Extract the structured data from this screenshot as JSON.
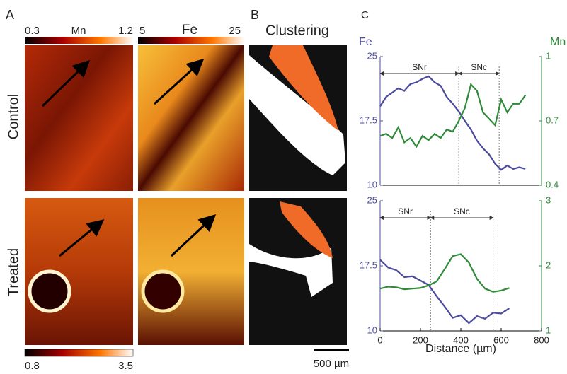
{
  "panels": [
    "A",
    "B",
    "C"
  ],
  "row_labels": [
    "Control",
    "Treated"
  ],
  "colorbars": [
    {
      "label": "Mn",
      "range": [
        0.3,
        1.2
      ]
    },
    {
      "label": "Fe",
      "range": [
        5,
        25
      ]
    },
    {
      "range": [
        0.8,
        3.5
      ]
    }
  ],
  "clustering_title": "Clustering",
  "scale_bar": "500 µm",
  "chart_data": [
    {
      "type": "line",
      "ylabel": "Fe",
      "y2label": "Mn",
      "x": [
        0,
        30,
        60,
        90,
        120,
        150,
        180,
        210,
        240,
        270,
        300,
        330,
        360,
        390,
        420,
        450,
        480,
        510,
        540,
        570,
        600,
        630,
        660,
        690,
        720
      ],
      "xlim": [
        0,
        800
      ],
      "ylim": [
        10,
        25
      ],
      "yticks": [
        10,
        17.5,
        25
      ],
      "y2lim": [
        0.4,
        1
      ],
      "y2ticks": [
        0.4,
        0.7,
        1
      ],
      "regions": [
        {
          "label": "SNr",
          "from": 0,
          "to": 390
        },
        {
          "label": "SNc",
          "from": 390,
          "to": 590
        }
      ],
      "series": [
        {
          "name": "Fe",
          "color": "#4b4b9e",
          "values": [
            19.2,
            20.3,
            20.8,
            21.3,
            21.0,
            21.8,
            22.0,
            22.4,
            22.7,
            22.0,
            21.6,
            20.3,
            19.5,
            18.6,
            17.5,
            16.5,
            15.2,
            14.3,
            13.6,
            12.5,
            11.8,
            12.3,
            11.9,
            12.1,
            11.9
          ]
        },
        {
          "name": "Mn",
          "color": "#2f8a3a",
          "axis": "y2",
          "values": [
            0.63,
            0.64,
            0.62,
            0.67,
            0.6,
            0.62,
            0.58,
            0.63,
            0.61,
            0.64,
            0.62,
            0.66,
            0.65,
            0.7,
            0.76,
            0.87,
            0.84,
            0.74,
            0.71,
            0.68,
            0.8,
            0.74,
            0.78,
            0.78,
            0.82
          ]
        }
      ]
    },
    {
      "type": "line",
      "ylabel": "",
      "xlabel": "Distance (µm)",
      "x": [
        0,
        40,
        80,
        120,
        160,
        200,
        240,
        280,
        320,
        360,
        400,
        440,
        480,
        520,
        560,
        600,
        640
      ],
      "xlim": [
        0,
        800
      ],
      "xticks": [
        0,
        200,
        400,
        600,
        800
      ],
      "ylim": [
        10,
        25
      ],
      "yticks": [
        10,
        17.5,
        25
      ],
      "y2lim": [
        1,
        3
      ],
      "y2ticks": [
        1,
        2,
        3
      ],
      "regions": [
        {
          "label": "SNr",
          "from": 0,
          "to": 250
        },
        {
          "label": "SNc",
          "from": 250,
          "to": 560
        }
      ],
      "series": [
        {
          "name": "Fe",
          "color": "#4b4b9e",
          "values": [
            18.2,
            17.3,
            17.0,
            16.2,
            16.3,
            15.8,
            15.3,
            14.0,
            12.8,
            11.5,
            11.8,
            10.9,
            11.7,
            11.4,
            12.1,
            12.0,
            12.6
          ]
        },
        {
          "name": "Mn",
          "color": "#2f8a3a",
          "axis": "y2",
          "values": [
            1.65,
            1.68,
            1.67,
            1.64,
            1.65,
            1.66,
            1.7,
            1.76,
            1.95,
            2.15,
            2.18,
            2.05,
            1.8,
            1.65,
            1.6,
            1.62,
            1.66
          ]
        }
      ]
    }
  ]
}
